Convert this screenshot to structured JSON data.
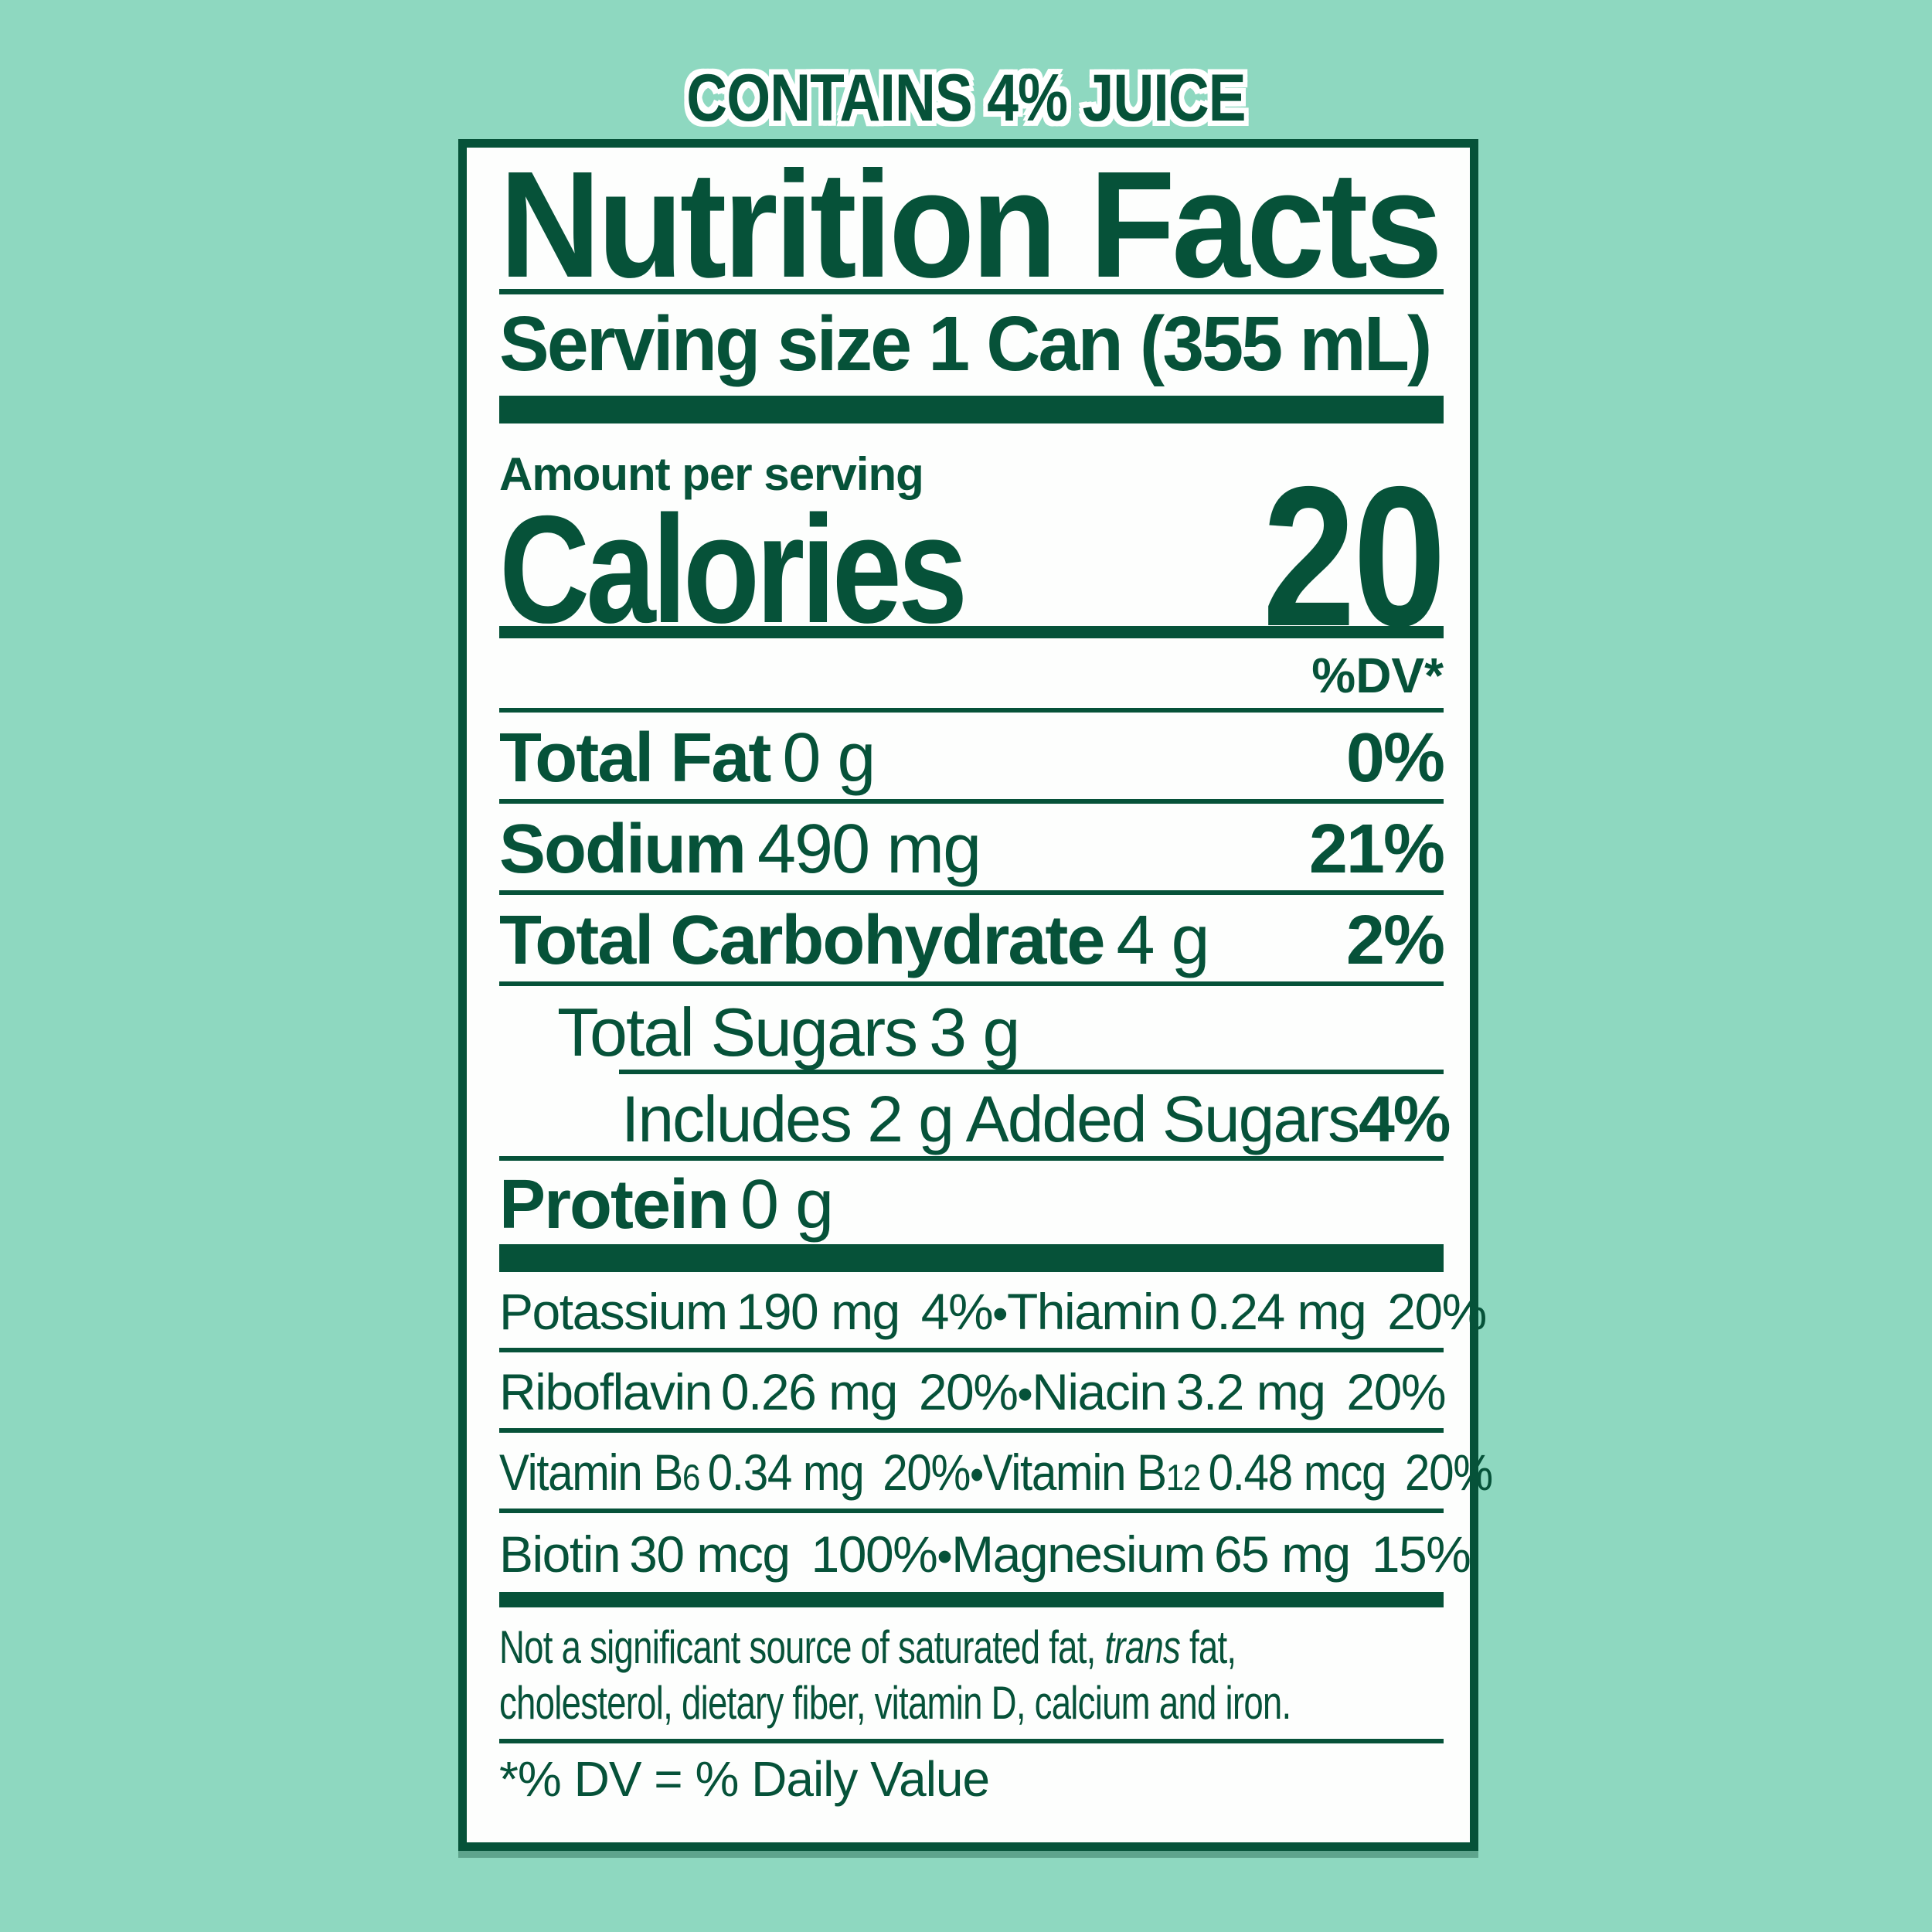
{
  "colors": {
    "green": "#065239",
    "mint": "#8ed8c0",
    "paper": "#fdfefd"
  },
  "top_banner": {
    "text": "CONTAINS 4% JUICE"
  },
  "label": {
    "title": "Nutrition Facts",
    "serving_size": "Serving size 1 Can (355 mL)",
    "amount_per_serving": "Amount per serving",
    "calories": {
      "label": "Calories",
      "value": "20"
    },
    "dv_header": "%DV*",
    "nutrients": [
      {
        "name": "Total Fat",
        "amount": "0 g",
        "dv": "0%"
      },
      {
        "name": "Sodium",
        "amount": "490 mg",
        "dv": "21%"
      },
      {
        "name": "Total Carbohydrate",
        "amount": "4 g",
        "dv": "2%"
      }
    ],
    "sugars": {
      "total": {
        "name": "Total Sugars",
        "amount": "3 g"
      },
      "added": {
        "text": "Includes 2 g Added Sugars",
        "dv": "4%"
      }
    },
    "protein": {
      "name": "Protein",
      "amount": "0 g"
    },
    "micronutrients": {
      "separator": "•",
      "rows": [
        {
          "left": {
            "name": "Potassium",
            "amount": "190 mg",
            "dv": "4%"
          },
          "right": {
            "name": "Thiamin",
            "amount": "0.24 mg",
            "dv": "20%"
          }
        },
        {
          "left": {
            "name": "Riboflavin",
            "amount": "0.26 mg",
            "dv": "20%"
          },
          "right": {
            "name": "Niacin",
            "amount": "3.2 mg",
            "dv": "20%"
          }
        },
        {
          "left": {
            "name": "Vitamin B",
            "sub": "6",
            "amount": "0.34 mg",
            "dv": "20%"
          },
          "right": {
            "name": "Vitamin B",
            "sub": "12",
            "amount": "0.48 mcg",
            "dv": "20%"
          }
        },
        {
          "left": {
            "name": "Biotin",
            "amount": "30 mcg",
            "dv": "100%"
          },
          "right": {
            "name": "Magnesium",
            "amount": "65 mg",
            "dv": "15%"
          }
        }
      ]
    },
    "footnote": {
      "line1_pre": "Not a significant source of saturated fat, ",
      "line1_italic": "trans",
      "line1_post": " fat,",
      "line2": "cholesterol, dietary fiber, vitamin D, calcium and iron."
    },
    "daily_value_note": "*% DV = % Daily Value"
  }
}
